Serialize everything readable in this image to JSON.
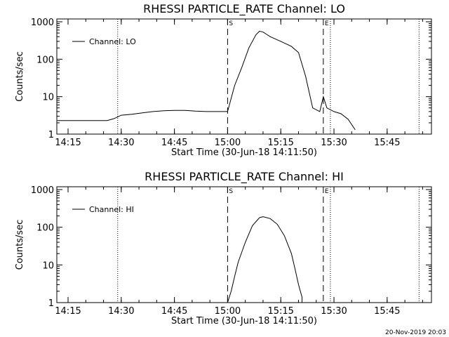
{
  "chart_data": [
    {
      "type": "line",
      "title": "RHESSI PARTICLE_RATE Channel: LO",
      "xlabel": "Start Time (30-Jun-18 14:11:50)",
      "ylabel": "Counts/sec",
      "yscale": "log",
      "ylim": [
        1,
        1000
      ],
      "xlim": [
        "14:11:50",
        "15:57:30"
      ],
      "ytick_labels": [
        "1",
        "10",
        "100",
        "1000"
      ],
      "xtick_labels": [
        "14:15",
        "14:30",
        "14:45",
        "15:00",
        "15:15",
        "15:30",
        "15:45"
      ],
      "legend": {
        "entries": [
          "Channel: LO"
        ],
        "position": "top-left"
      },
      "markers": [
        {
          "label": "S",
          "time": "15:00",
          "style": "dashed"
        },
        {
          "label": "E",
          "time": "15:27",
          "style": "dashed"
        }
      ],
      "dotted_lines": [
        "14:29",
        "15:29",
        "15:54"
      ],
      "series": [
        {
          "points": [
            [
              "14:12",
              2.3
            ],
            [
              "14:14",
              2.3
            ],
            [
              "14:16",
              2.3
            ],
            [
              "14:18",
              2.3
            ],
            [
              "14:20",
              2.3
            ],
            [
              "14:22",
              2.3
            ],
            [
              "14:24",
              2.3
            ],
            [
              "14:26",
              2.3
            ],
            [
              "14:28",
              2.6
            ],
            [
              "14:30",
              3.2
            ],
            [
              "14:33",
              3.4
            ],
            [
              "14:36",
              3.7
            ],
            [
              "14:39",
              4.0
            ],
            [
              "14:42",
              4.2
            ],
            [
              "14:45",
              4.3
            ],
            [
              "14:48",
              4.3
            ],
            [
              "14:51",
              4.1
            ],
            [
              "14:54",
              4.0
            ],
            [
              "14:57",
              4.0
            ],
            [
              "15:00",
              4.0
            ],
            [
              "15:02",
              20
            ],
            [
              "15:04",
              60
            ],
            [
              "15:06",
              200
            ],
            [
              "15:08",
              450
            ],
            [
              "15:09",
              560
            ],
            [
              "15:10",
              530
            ],
            [
              "15:12",
              400
            ],
            [
              "15:15",
              300
            ],
            [
              "15:18",
              220
            ],
            [
              "15:20",
              150
            ],
            [
              "15:22",
              35
            ],
            [
              "15:24",
              5
            ],
            [
              "15:26",
              4
            ],
            [
              "15:27",
              10
            ],
            [
              "15:28",
              5
            ],
            [
              "15:30",
              4
            ],
            [
              "15:32",
              3.5
            ],
            [
              "15:34",
              2.5
            ],
            [
              "15:36",
              1.3
            ]
          ]
        }
      ]
    },
    {
      "type": "line",
      "title": "RHESSI PARTICLE_RATE Channel: HI",
      "xlabel": "Start Time (30-Jun-18 14:11:50)",
      "ylabel": "Counts/sec",
      "yscale": "log",
      "ylim": [
        1,
        1000
      ],
      "xlim": [
        "14:11:50",
        "15:57:30"
      ],
      "ytick_labels": [
        "1",
        "10",
        "100",
        "1000"
      ],
      "xtick_labels": [
        "14:15",
        "14:30",
        "14:45",
        "15:00",
        "15:15",
        "15:30",
        "15:45"
      ],
      "legend": {
        "entries": [
          "Channel: HI"
        ],
        "position": "top-left"
      },
      "markers": [
        {
          "label": "S",
          "time": "15:00",
          "style": "dashed"
        },
        {
          "label": "E",
          "time": "15:27",
          "style": "dashed"
        }
      ],
      "dotted_lines": [
        "14:29",
        "15:29",
        "15:54"
      ],
      "series": [
        {
          "points": [
            [
              "15:00",
              1.0
            ],
            [
              "15:01",
              2
            ],
            [
              "15:02",
              5
            ],
            [
              "15:03",
              12
            ],
            [
              "15:05",
              40
            ],
            [
              "15:07",
              110
            ],
            [
              "15:09",
              180
            ],
            [
              "15:10",
              190
            ],
            [
              "15:12",
              170
            ],
            [
              "15:14",
              120
            ],
            [
              "15:16",
              60
            ],
            [
              "15:18",
              20
            ],
            [
              "15:19",
              8
            ],
            [
              "15:20",
              3
            ],
            [
              "15:21",
              1.4
            ],
            [
              "15:21",
              1.0
            ]
          ]
        }
      ]
    }
  ],
  "footer": {
    "date": "20-Nov-2019 20:03"
  }
}
